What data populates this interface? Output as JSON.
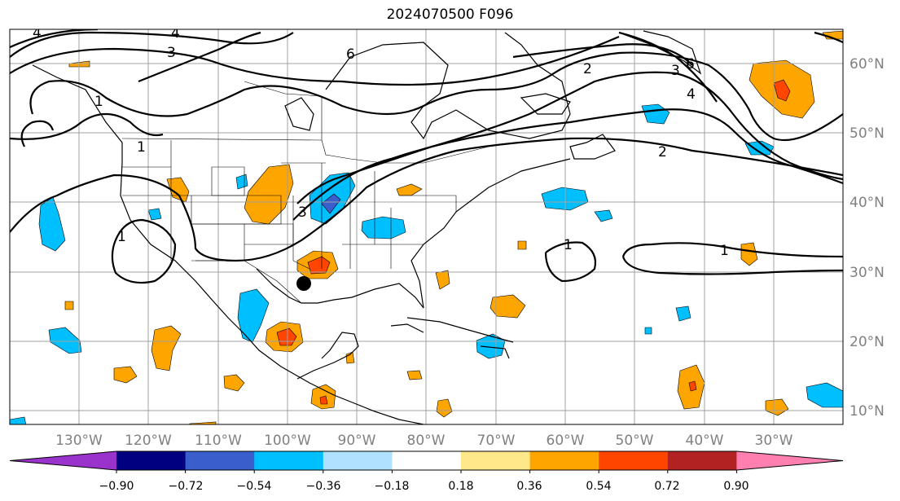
{
  "title": "2024070500 F096",
  "map": {
    "lon_labels": [
      "130°W",
      "120°W",
      "110°W",
      "100°W",
      "90°W",
      "80°W",
      "70°W",
      "60°W",
      "50°W",
      "40°W",
      "30°W"
    ],
    "lat_labels": [
      "60°N",
      "50°N",
      "40°N",
      "30°N",
      "20°N",
      "10°N"
    ],
    "contour_labels": [
      "4",
      "4",
      "3",
      "6",
      "1",
      "1",
      "1",
      "3",
      "2",
      "6",
      "3",
      "4",
      "2",
      "1",
      "1"
    ],
    "marker": "location-dot",
    "colors": {
      "line": "#000000",
      "grid": "#a0a0a0",
      "background": "#ffffff"
    }
  },
  "colorbar": {
    "ticks": [
      "−0.90",
      "−0.72",
      "−0.54",
      "−0.36",
      "−0.18",
      "0.18",
      "0.36",
      "0.54",
      "0.72",
      "0.90"
    ],
    "colors": [
      "#9933cc",
      "#000080",
      "#3a5fcd",
      "#00bfff",
      "#b0e2ff",
      "#ffffff",
      "#ffe88a",
      "#ffa500",
      "#ff4500",
      "#b22222",
      "#ff80b0"
    ]
  }
}
